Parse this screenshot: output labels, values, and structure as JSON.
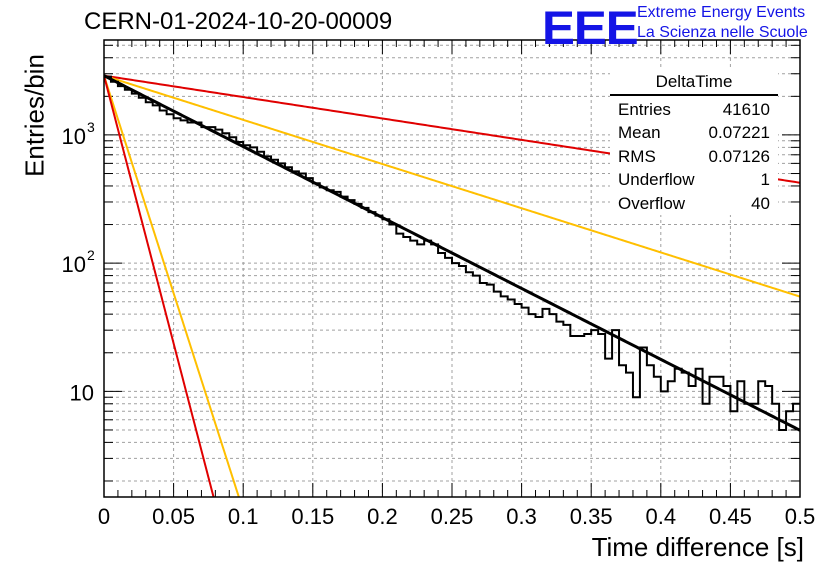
{
  "title": "CERN-01-2024-10-20-00009",
  "logo": {
    "mark": "EEE",
    "line1": "Extreme Energy Events",
    "line2": "La Scienza nelle Scuole"
  },
  "stats": {
    "name": "DeltaTime",
    "rows": [
      {
        "label": "Entries",
        "value": "41610"
      },
      {
        "label": "Mean",
        "value": "0.07221"
      },
      {
        "label": "RMS",
        "value": "0.07126"
      },
      {
        "label": "Underflow",
        "value": "1"
      },
      {
        "label": "Overflow",
        "value": "40"
      }
    ]
  },
  "colors": {
    "data": "#000000",
    "fit": "#000000",
    "red": "#e00000",
    "orange": "#ffbf00",
    "grid": "#a0a0a0"
  },
  "chart_data": {
    "type": "line",
    "xlabel": "Time difference [s]",
    "ylabel": "Entries/bin",
    "xlim": [
      0,
      0.5
    ],
    "ylim": [
      1.5,
      5500
    ],
    "ylog": true,
    "grid": true,
    "legend": "top-right",
    "xticks": [
      "0",
      "0.05",
      "0.1",
      "0.15",
      "0.2",
      "0.25",
      "0.3",
      "0.35",
      "0.4",
      "0.45",
      "0.5"
    ],
    "yticks": [
      {
        "value": 10,
        "label": "10"
      },
      {
        "value": 100,
        "label": "10",
        "sup": "2"
      },
      {
        "value": 1000,
        "label": "10",
        "sup": "3"
      }
    ],
    "histogram": {
      "bin_width": 0.005,
      "values": [
        2850,
        2600,
        2400,
        2250,
        2100,
        1950,
        1800,
        1700,
        1550,
        1450,
        1350,
        1300,
        1250,
        1250,
        1150,
        1150,
        1100,
        1030,
        960,
        880,
        830,
        800,
        740,
        680,
        640,
        600,
        560,
        520,
        500,
        460,
        420,
        390,
        370,
        360,
        330,
        310,
        290,
        270,
        250,
        235,
        220,
        200,
        170,
        160,
        150,
        140,
        150,
        140,
        120,
        110,
        100,
        95,
        85,
        80,
        70,
        68,
        60,
        55,
        52,
        48,
        45,
        40,
        38,
        44,
        40,
        35,
        33,
        27,
        27,
        28,
        30,
        28,
        18,
        30,
        16,
        14,
        9,
        22,
        16,
        13,
        10,
        12,
        15,
        14,
        11,
        15,
        8,
        13,
        13,
        11,
        7,
        12,
        8,
        8,
        12,
        11,
        8,
        5,
        7,
        8
      ],
      "fit": {
        "a": 2900,
        "tau": 0.0785
      }
    },
    "series": [
      {
        "color": "red",
        "a": 2900,
        "tau": 0.26
      },
      {
        "color": "orange",
        "a": 2900,
        "tau": 0.126
      },
      {
        "color": "orange",
        "a": 2900,
        "tau": 0.0128
      },
      {
        "color": "red",
        "a": 2900,
        "tau": 0.0104
      }
    ]
  }
}
